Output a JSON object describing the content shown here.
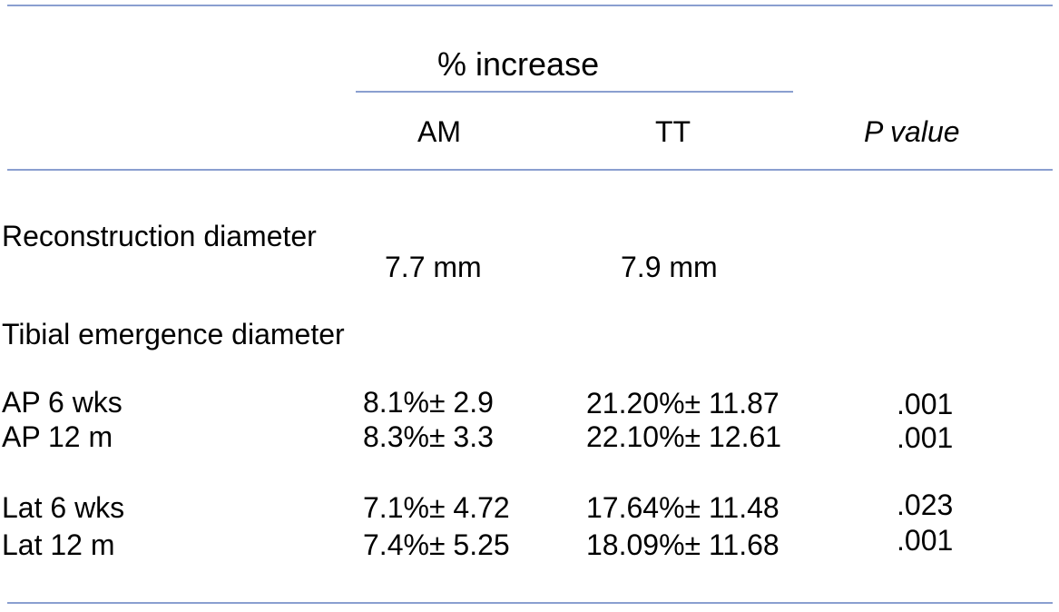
{
  "table": {
    "group_header": "% increase",
    "columns": {
      "am": "AM",
      "tt": "TT",
      "p": "P value"
    },
    "section_rows": [
      {
        "label": "Reconstruction diameter",
        "am": "7.7 mm",
        "tt": "7.9 mm"
      },
      {
        "label": "Tibial emergence diameter"
      }
    ],
    "rows": [
      {
        "label": "AP 6 wks",
        "am": "8.1%± 2.9",
        "tt": "21.20%± 11.87",
        "p": ".001"
      },
      {
        "label": "AP 12 m",
        "am": "8.3%± 3.3",
        "tt": "22.10%± 12.61",
        "p": ".001"
      },
      {
        "label": "Lat 6 wks",
        "am": "7.1%± 4.72",
        "tt": "17.64%± 11.48",
        "p": ".023"
      },
      {
        "label": "Lat 12 m",
        "am": "7.4%± 5.25",
        "tt": "18.09%± 11.68",
        "p": ".001"
      }
    ]
  },
  "colors": {
    "rule": "#8a9fd0",
    "text": "#000000"
  }
}
